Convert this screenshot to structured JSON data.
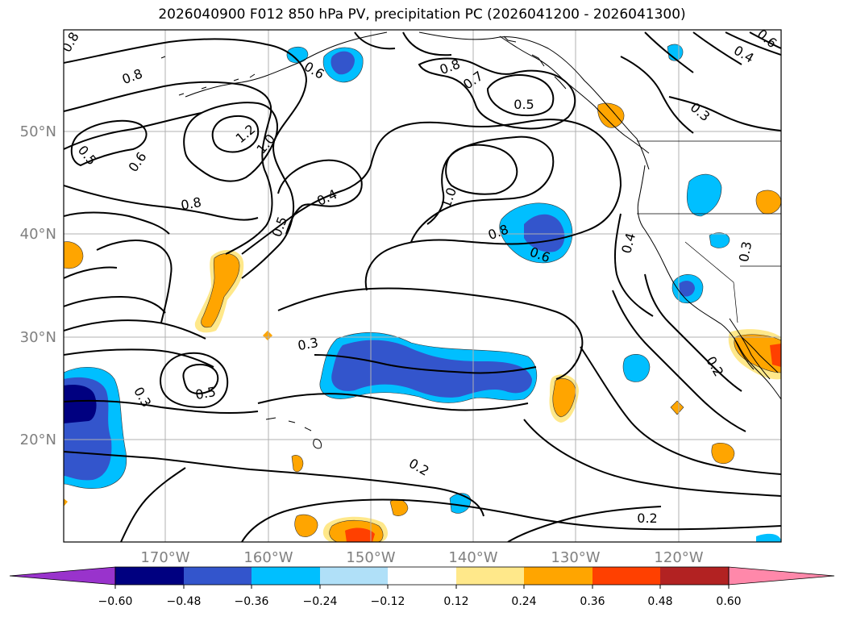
{
  "title": "2026040900 F012 850 hPa PV, precipitation PC (2026041200 - 2026041300)",
  "map": {
    "lat_labels": [
      "50°N",
      "40°N",
      "30°N",
      "20°N"
    ],
    "lon_labels": [
      "170°W",
      "160°W",
      "150°W",
      "140°W",
      "130°W",
      "120°W"
    ],
    "grid": true,
    "colors": {
      "land_outline": "#000000",
      "gridline": "#b0b0b0",
      "axis_label": "#808080"
    }
  },
  "contours": {
    "variable": "850 hPa PV",
    "labels": [
      "0.8",
      "0.8",
      "0.5",
      "0.6",
      "0.8",
      "1.2",
      "1.0",
      "0.4",
      "0.5",
      "0.3",
      "0.5",
      "0.3",
      "0.2",
      "1.0",
      "0.8",
      "0.6",
      "0.8",
      "0.7",
      "0.5",
      "0.6",
      "0.3",
      "0.4",
      "0.6",
      "0.4",
      "0.3",
      "0.2",
      "0.2"
    ]
  },
  "precip_regions": [
    {
      "type": "negative",
      "level": -0.48
    },
    {
      "type": "negative",
      "level": -0.36
    },
    {
      "type": "negative",
      "level": -0.36
    },
    {
      "type": "negative",
      "level": -0.36
    },
    {
      "type": "negative",
      "level": -0.24
    },
    {
      "type": "negative",
      "level": -0.24
    },
    {
      "type": "negative",
      "level": -0.24
    },
    {
      "type": "negative",
      "level": -0.24
    },
    {
      "type": "positive",
      "level": 0.24
    },
    {
      "type": "positive",
      "level": 0.24
    },
    {
      "type": "positive",
      "level": 0.36
    },
    {
      "type": "positive",
      "level": 0.36
    },
    {
      "type": "positive",
      "level": 0.24
    },
    {
      "type": "positive",
      "level": 0.24
    }
  ],
  "colorbar": {
    "ticks": [
      "−0.60",
      "−0.48",
      "−0.36",
      "−0.24",
      "−0.12",
      "0.12",
      "0.24",
      "0.36",
      "0.48",
      "0.60"
    ],
    "colors": [
      "#9933cc",
      "#000080",
      "#3355cc",
      "#00bfff",
      "#b0e0f8",
      "#ffffff",
      "#ffe88a",
      "#ffa500",
      "#ff4000",
      "#b22222",
      "#ff88aa"
    ]
  }
}
